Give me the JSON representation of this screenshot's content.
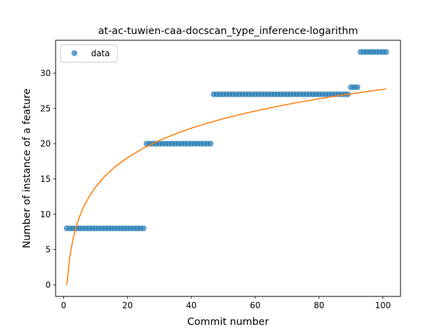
{
  "chart_data": {
    "type": "scatter",
    "title": "at-ac-tuwien-caa-docscan_type_inference-logarithm",
    "xlabel": "Commit number",
    "ylabel": "Number of instance of a feature",
    "xlim": [
      -2.5,
      105.5
    ],
    "ylim": [
      -1.65,
      34.65
    ],
    "x_ticks": [
      0,
      20,
      40,
      60,
      80,
      100
    ],
    "y_ticks": [
      0,
      5,
      10,
      15,
      20,
      25,
      30
    ],
    "legend": {
      "position": "upper-left",
      "entries": [
        "data"
      ]
    },
    "grid": false,
    "series": [
      {
        "name": "data",
        "kind": "scatter",
        "color": "#1f77b4",
        "segments": [
          {
            "x_from": 1,
            "x_to": 25,
            "y": 8
          },
          {
            "x_from": 26,
            "x_to": 46,
            "y": 20
          },
          {
            "x_from": 47,
            "x_to": 89,
            "y": 27
          },
          {
            "x_from": 90,
            "x_to": 92,
            "y": 28
          },
          {
            "x_from": 93,
            "x_to": 101,
            "y": 33
          }
        ]
      },
      {
        "kind": "line",
        "color": "#ff7f0e",
        "fit": "logarithmic",
        "x": [
          1,
          2,
          3,
          4,
          5,
          6,
          8,
          10,
          13,
          16,
          20,
          25,
          30,
          35,
          40,
          45,
          50,
          55,
          60,
          65,
          70,
          75,
          80,
          85,
          90,
          95,
          101
        ],
        "y": [
          0.0,
          4.17,
          6.61,
          8.34,
          9.68,
          10.78,
          12.51,
          13.85,
          15.43,
          16.68,
          18.02,
          19.36,
          20.46,
          21.38,
          22.19,
          22.89,
          23.53,
          24.1,
          24.62,
          25.11,
          25.55,
          25.97,
          26.36,
          26.72,
          27.06,
          27.39,
          27.75
        ]
      }
    ]
  }
}
